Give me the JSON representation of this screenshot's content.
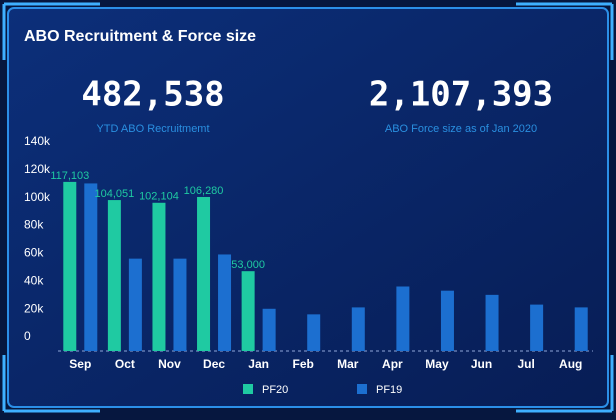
{
  "header": {
    "title": "ABO Recruitment & Force size"
  },
  "kpis": [
    {
      "value": "482,538",
      "label": "YTD ABO Recruitmemt"
    },
    {
      "value": "2,107,393",
      "label": "ABO Force size as of Jan 2020"
    }
  ],
  "chart_data": {
    "type": "bar",
    "categories": [
      "Sep",
      "Oct",
      "Nov",
      "Dec",
      "Jan",
      "Feb",
      "Mar",
      "Apr",
      "May",
      "Jun",
      "Jul",
      "Aug"
    ],
    "series": [
      {
        "name": "PF20",
        "color": "#1fcaa2",
        "values": [
          117103,
          104051,
          102104,
          106280,
          53000,
          null,
          null,
          null,
          null,
          null,
          null,
          null
        ],
        "value_labels": [
          "117,103",
          "104,051",
          "102,104",
          "106,280",
          "53,000",
          null,
          null,
          null,
          null,
          null,
          null,
          null
        ]
      },
      {
        "name": "PF19",
        "color": "#1c6fd0",
        "values": [
          116000,
          62000,
          62000,
          65000,
          26000,
          22000,
          27000,
          42000,
          39000,
          36000,
          29000,
          27000
        ]
      }
    ],
    "ylim": [
      0,
      140000
    ],
    "yticks": [
      {
        "value": 0,
        "label": "0"
      },
      {
        "value": 20000,
        "label": "20k"
      },
      {
        "value": 40000,
        "label": "40k"
      },
      {
        "value": 60000,
        "label": "60k"
      },
      {
        "value": 80000,
        "label": "80k"
      },
      {
        "value": 100000,
        "label": "100k"
      },
      {
        "value": 120000,
        "label": "120k"
      },
      {
        "value": 140000,
        "label": "140k"
      }
    ],
    "legend": "bottom"
  }
}
